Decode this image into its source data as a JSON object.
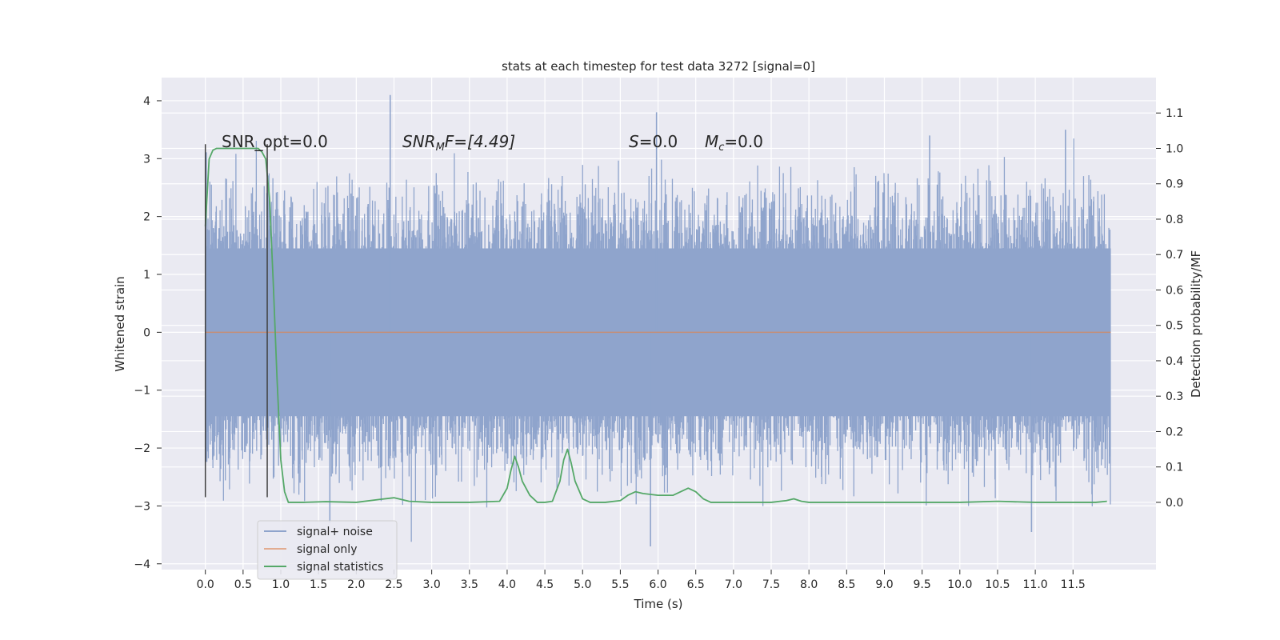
{
  "chart_data": {
    "type": "line",
    "title": "stats at each timestep for test data 3272 [signal=0]",
    "xlabel": "Time (s)",
    "ylabel": "Whitened strain",
    "y2label": "Detection probability/MF",
    "xlim": [
      -0.58,
      12.6
    ],
    "ylim": [
      -4.1,
      4.4
    ],
    "y2lim": [
      -0.19,
      1.2
    ],
    "x_ticks": [
      "0.0",
      "0.5",
      "1.0",
      "1.5",
      "2.0",
      "2.5",
      "3.0",
      "3.5",
      "4.0",
      "4.5",
      "5.0",
      "5.5",
      "6.0",
      "6.5",
      "7.0",
      "7.5",
      "8.0",
      "8.5",
      "9.0",
      "9.5",
      "10.0",
      "10.5",
      "11.0",
      "11.5"
    ],
    "y_ticks": [
      "4",
      "3",
      "2",
      "1",
      "0",
      "−1",
      "−2",
      "−3",
      "−4"
    ],
    "y2_ticks": [
      "1.1",
      "1.0",
      "0.9",
      "0.8",
      "0.7",
      "0.6",
      "0.5",
      "0.4",
      "0.3",
      "0.2",
      "0.1",
      "0.0"
    ],
    "grid": true,
    "legend_position": "lower-left",
    "series": [
      {
        "name": "signal+ noise",
        "color": "#8fa4cc",
        "axis": "left",
        "description": "dense whitened noise trace from 0 to 12 s",
        "envelope": {
          "core": 1.4,
          "peak_max": 4.1,
          "peak_min": -3.7
        }
      },
      {
        "name": "signal only",
        "color": "#dd8452",
        "axis": "left",
        "values_x": [
          0,
          12
        ],
        "values_y": [
          0,
          0
        ]
      },
      {
        "name": "signal statistics",
        "color": "#55a868",
        "axis": "right",
        "x": [
          0.0,
          0.05,
          0.1,
          0.15,
          0.25,
          0.4,
          0.6,
          0.7,
          0.75,
          0.8,
          0.85,
          0.9,
          0.95,
          1.0,
          1.05,
          1.1,
          1.3,
          1.6,
          2.0,
          2.3,
          2.5,
          2.7,
          3.0,
          3.5,
          3.9,
          4.0,
          4.05,
          4.1,
          4.15,
          4.2,
          4.3,
          4.4,
          4.5,
          4.6,
          4.7,
          4.75,
          4.8,
          4.85,
          4.9,
          5.0,
          5.1,
          5.3,
          5.5,
          5.6,
          5.7,
          5.8,
          6.0,
          6.2,
          6.4,
          6.5,
          6.6,
          6.7,
          6.8,
          7.0,
          7.5,
          7.7,
          7.8,
          7.9,
          8.0,
          8.5,
          9.0,
          9.5,
          10.0,
          10.5,
          11.0,
          11.5,
          11.8,
          11.95
        ],
        "y": [
          0.78,
          0.97,
          0.995,
          1.0,
          1.0,
          1.0,
          1.0,
          1.0,
          0.99,
          0.97,
          0.86,
          0.62,
          0.35,
          0.12,
          0.03,
          0.0,
          0.0,
          0.002,
          0.0,
          0.008,
          0.013,
          0.003,
          0.0,
          0.0,
          0.003,
          0.04,
          0.09,
          0.13,
          0.1,
          0.06,
          0.02,
          0.0,
          0.0,
          0.003,
          0.06,
          0.12,
          0.15,
          0.11,
          0.06,
          0.01,
          0.0,
          0.0,
          0.005,
          0.02,
          0.03,
          0.025,
          0.02,
          0.02,
          0.04,
          0.03,
          0.01,
          0.0,
          0.0,
          0.0,
          0.0,
          0.005,
          0.01,
          0.003,
          0.0,
          0.0,
          0.0,
          0.0,
          0.0,
          0.003,
          0.0,
          0.0,
          0.0,
          0.003
        ]
      }
    ],
    "vlines": [
      {
        "x": 0.0,
        "color": "#404040"
      },
      {
        "x": 0.82,
        "color": "#404040"
      }
    ],
    "annotations": [
      {
        "text": "SNR_opt=0.0"
      },
      {
        "base": "SNR",
        "sub": "M",
        "rest": "F=[4.49]"
      },
      {
        "base": "S",
        "rest": "=0.0"
      },
      {
        "base": "M",
        "sub": "c",
        "rest": "=0.0"
      }
    ],
    "colors": {
      "plot_bg": "#eaeaf2",
      "grid": "#ffffff",
      "text": "#262626"
    }
  }
}
